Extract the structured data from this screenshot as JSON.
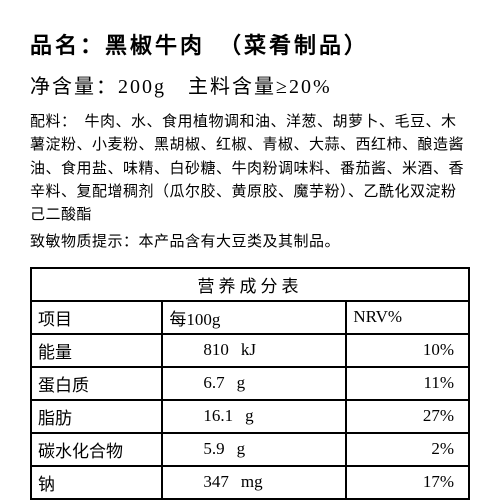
{
  "title": {
    "label": "品名：",
    "name": "黑椒牛肉",
    "category": "（菜肴制品）"
  },
  "subtitle": {
    "netWeightLabel": "净含量：",
    "netWeightValue": "200g",
    "mainIngredientLabel": "主料含量",
    "mainIngredientValue": "≥20%"
  },
  "ingredients": {
    "label": "配料：",
    "text": "　牛肉、水、食用植物调和油、洋葱、胡萝卜、毛豆、木薯淀粉、小麦粉、黑胡椒、红椒、青椒、大蒜、西红柿、酿造酱油、食用盐、味精、白砂糖、牛肉粉调味料、番茄酱、米酒、香辛料、复配增稠剂（瓜尔胶、黄原胶、魔芋粉）、乙酰化双淀粉己二酸酯"
  },
  "allergen": {
    "label": "致敏物质提示：",
    "text": "本产品含有大豆类及其制品。"
  },
  "nutritionTitle": "营养成分表",
  "headers": {
    "item": "项目",
    "per100": "每100g",
    "nrv": "NRV%"
  },
  "rows": [
    {
      "item": "能量",
      "value": "810",
      "unit": "kJ",
      "nrv": "10%"
    },
    {
      "item": "蛋白质",
      "value": "6.7",
      "unit": "g",
      "nrv": "11%"
    },
    {
      "item": "脂肪",
      "value": "16.1",
      "unit": "g",
      "nrv": "27%"
    },
    {
      "item": "碳水化合物",
      "value": "5.9",
      "unit": "g",
      "nrv": "2%"
    },
    {
      "item": "钠",
      "value": "347",
      "unit": "mg",
      "nrv": "17%"
    }
  ]
}
